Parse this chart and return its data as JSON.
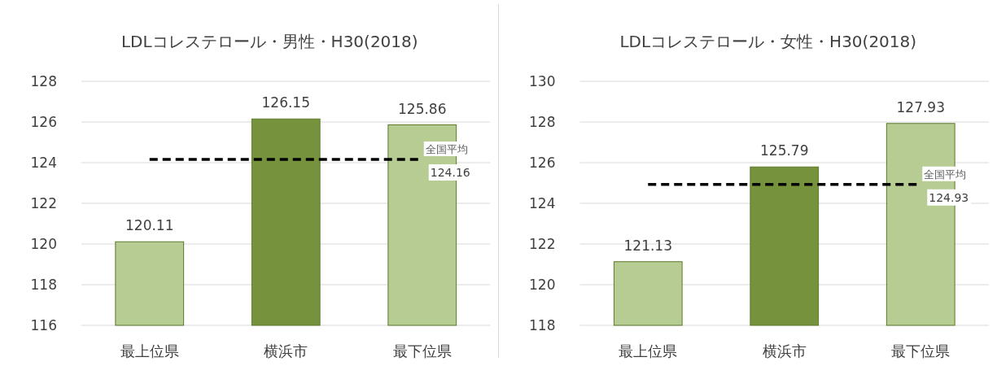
{
  "chart_data": [
    {
      "type": "bar",
      "title": "LDLコレステロール・男性・H30(2018)",
      "categories": [
        "最上位県",
        "横浜市",
        "最下位県"
      ],
      "values": [
        120.11,
        126.15,
        125.86
      ],
      "colors": [
        "#b6cc93",
        "#76923c",
        "#b6cc93"
      ],
      "ylim": [
        116,
        128
      ],
      "yticks": [
        116,
        118,
        120,
        122,
        124,
        126,
        128
      ],
      "grid": "y",
      "data_labels": true,
      "ref_lines": [
        {
          "axis": "y",
          "value": 124.16,
          "label": "全国平均",
          "color": "#000000",
          "line_style": "dashed"
        }
      ],
      "annotations": [
        {
          "text": "124.16",
          "x": "最下位県",
          "y": 124.16
        }
      ]
    },
    {
      "type": "bar",
      "title": "LDLコレステロール・女性・H30(2018)",
      "categories": [
        "最上位県",
        "横浜市",
        "最下位県"
      ],
      "values": [
        121.13,
        125.79,
        127.93
      ],
      "colors": [
        "#b6cc93",
        "#76923c",
        "#b6cc93"
      ],
      "ylim": [
        118,
        130
      ],
      "yticks": [
        118,
        120,
        122,
        124,
        126,
        128,
        130
      ],
      "grid": "y",
      "data_labels": true,
      "ref_lines": [
        {
          "axis": "y",
          "value": 124.93,
          "label": "全国平均",
          "color": "#000000",
          "line_style": "dashed"
        }
      ],
      "annotations": [
        {
          "text": "124.93",
          "x": "最下位県",
          "y": 124.93
        }
      ]
    }
  ]
}
